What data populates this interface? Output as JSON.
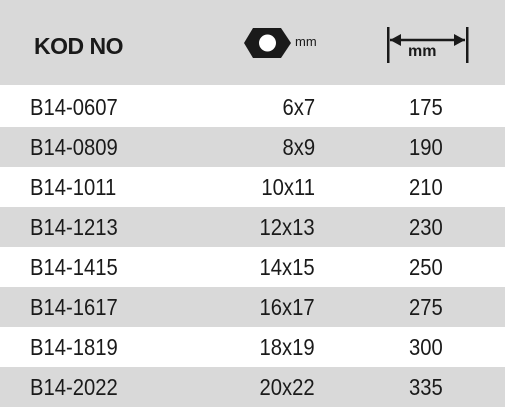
{
  "header": {
    "code_label": "KOD NO",
    "hex_unit": "mm",
    "hex_icon": "hex-nut-icon",
    "length_unit": "mm",
    "length_icon": "length-arrow-icon"
  },
  "colors": {
    "header_bg": "#d9d9d9",
    "stripe_bg": "#d9d9d9",
    "text": "#1a1a1a"
  },
  "rows": [
    {
      "code": "B14-0607",
      "size": "6x7",
      "length": "175"
    },
    {
      "code": "B14-0809",
      "size": "8x9",
      "length": "190"
    },
    {
      "code": "B14-1011",
      "size": "10x11",
      "length": "210"
    },
    {
      "code": "B14-1213",
      "size": "12x13",
      "length": "230"
    },
    {
      "code": "B14-1415",
      "size": "14x15",
      "length": "250"
    },
    {
      "code": "B14-1617",
      "size": "16x17",
      "length": "275"
    },
    {
      "code": "B14-1819",
      "size": "18x19",
      "length": "300"
    },
    {
      "code": "B14-2022",
      "size": "20x22",
      "length": "335"
    }
  ]
}
